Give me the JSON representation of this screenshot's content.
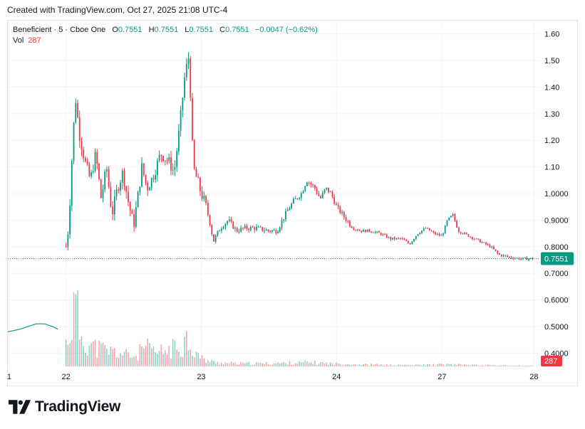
{
  "header": {
    "created_text": "Created with TradingView.com, Oct 27, 2025 21:08 UTC-4"
  },
  "legend": {
    "symbol": "Beneficient · 5 · Cboe One",
    "o_label": "O",
    "o_value": "0.7551",
    "h_label": "H",
    "h_value": "0.7551",
    "l_label": "L",
    "l_value": "0.7551",
    "c_label": "C",
    "c_value": "0.7551",
    "change": "−0.0047 (−0.62%)",
    "vol_label": "Vol",
    "vol_value": "287"
  },
  "branding": {
    "logo_text": "TradingView",
    "logo_icon": "tradingview-logo-icon"
  },
  "colors": {
    "up": "#089981",
    "down": "#f23645",
    "grid": "#f0f3fa",
    "price_line": "#089981"
  },
  "chart_data": {
    "type": "candlestick",
    "interval": "5",
    "y_ticks": [
      "1.60",
      "1.50",
      "1.40",
      "1.30",
      "1.20",
      "1.10",
      "1.0000",
      "0.9000",
      "0.8000",
      "0.7000",
      "0.6000",
      "0.5000",
      "0.4000"
    ],
    "ylim": [
      0.35,
      1.65
    ],
    "x_ticks": [
      {
        "label": "1",
        "x": -0.1
      },
      {
        "label": "22",
        "x": 2.0
      },
      {
        "label": "23",
        "x": 7.0
      },
      {
        "label": "24",
        "x": 12.0
      },
      {
        "label": "27",
        "x": 15.9
      },
      {
        "label": "28",
        "x": 19.3
      }
    ],
    "xlim": [
      -0.15,
      19.5
    ],
    "last_price": "0.7551",
    "last_price_value": 0.7551,
    "last_volume": "287",
    "price_keypoints": [
      [
        2.0,
        0.8
      ],
      [
        2.1,
        0.88
      ],
      [
        2.25,
        1.2
      ],
      [
        2.35,
        1.36
      ],
      [
        2.5,
        1.22
      ],
      [
        2.7,
        1.12
      ],
      [
        2.9,
        1.05
      ],
      [
        3.1,
        1.15
      ],
      [
        3.3,
        0.98
      ],
      [
        3.5,
        1.1
      ],
      [
        3.7,
        0.92
      ],
      [
        3.9,
        1.02
      ],
      [
        4.1,
        1.08
      ],
      [
        4.3,
        0.97
      ],
      [
        4.5,
        0.88
      ],
      [
        4.7,
        1.02
      ],
      [
        4.8,
        1.1
      ],
      [
        5.0,
        1.02
      ],
      [
        5.2,
        1.06
      ],
      [
        5.5,
        1.15
      ],
      [
        5.8,
        1.12
      ],
      [
        6.0,
        1.08
      ],
      [
        6.2,
        1.25
      ],
      [
        6.4,
        1.45
      ],
      [
        6.55,
        1.52
      ],
      [
        6.7,
        1.1
      ],
      [
        7.0,
        1.0
      ],
      [
        7.15,
        0.96
      ],
      [
        7.3,
        0.9
      ],
      [
        7.45,
        0.82
      ],
      [
        7.7,
        0.87
      ],
      [
        8.0,
        0.9
      ],
      [
        8.3,
        0.86
      ],
      [
        8.6,
        0.87
      ],
      [
        9.0,
        0.87
      ],
      [
        9.5,
        0.86
      ],
      [
        9.8,
        0.86
      ],
      [
        10.1,
        0.92
      ],
      [
        10.4,
        0.97
      ],
      [
        10.7,
        1.0
      ],
      [
        10.9,
        1.05
      ],
      [
        11.2,
        1.02
      ],
      [
        11.4,
        0.98
      ],
      [
        11.6,
        1.02
      ],
      [
        11.8,
        1.0
      ],
      [
        12.0,
        0.95
      ],
      [
        12.3,
        0.91
      ],
      [
        12.6,
        0.87
      ],
      [
        12.9,
        0.86
      ],
      [
        13.2,
        0.86
      ],
      [
        13.6,
        0.85
      ],
      [
        14.0,
        0.83
      ],
      [
        14.4,
        0.83
      ],
      [
        14.7,
        0.81
      ],
      [
        15.0,
        0.85
      ],
      [
        15.3,
        0.87
      ],
      [
        15.6,
        0.85
      ],
      [
        15.9,
        0.84
      ],
      [
        16.1,
        0.9
      ],
      [
        16.3,
        0.92
      ],
      [
        16.5,
        0.86
      ],
      [
        16.9,
        0.84
      ],
      [
        17.3,
        0.82
      ],
      [
        17.7,
        0.8
      ],
      [
        18.0,
        0.77
      ],
      [
        18.4,
        0.76
      ],
      [
        18.8,
        0.755
      ],
      [
        19.0,
        0.755
      ],
      [
        19.25,
        0.7551
      ]
    ],
    "pre_session_line": [
      [
        -0.15,
        0.48
      ],
      [
        0.3,
        0.49
      ],
      [
        0.6,
        0.5
      ],
      [
        0.9,
        0.51
      ],
      [
        1.2,
        0.51
      ],
      [
        1.5,
        0.5
      ],
      [
        1.7,
        0.49
      ]
    ],
    "volume_scale_max": 1.0,
    "volume_keypoints": [
      [
        2.0,
        0.35
      ],
      [
        2.2,
        0.6
      ],
      [
        2.35,
        1.0
      ],
      [
        2.5,
        0.55
      ],
      [
        2.7,
        0.4
      ],
      [
        3.0,
        0.3
      ],
      [
        3.4,
        0.25
      ],
      [
        3.8,
        0.22
      ],
      [
        4.2,
        0.18
      ],
      [
        4.6,
        0.15
      ],
      [
        4.9,
        0.3
      ],
      [
        5.3,
        0.2
      ],
      [
        5.8,
        0.25
      ],
      [
        6.2,
        0.3
      ],
      [
        6.5,
        0.45
      ],
      [
        6.7,
        0.25
      ],
      [
        7.0,
        0.12
      ],
      [
        7.5,
        0.06
      ],
      [
        8.5,
        0.04
      ],
      [
        10.0,
        0.05
      ],
      [
        11.0,
        0.06
      ],
      [
        12.0,
        0.04
      ],
      [
        13.0,
        0.03
      ],
      [
        14.0,
        0.02
      ],
      [
        15.0,
        0.02
      ],
      [
        16.0,
        0.03
      ],
      [
        17.0,
        0.02
      ],
      [
        18.0,
        0.015
      ],
      [
        19.3,
        0.01
      ]
    ]
  }
}
